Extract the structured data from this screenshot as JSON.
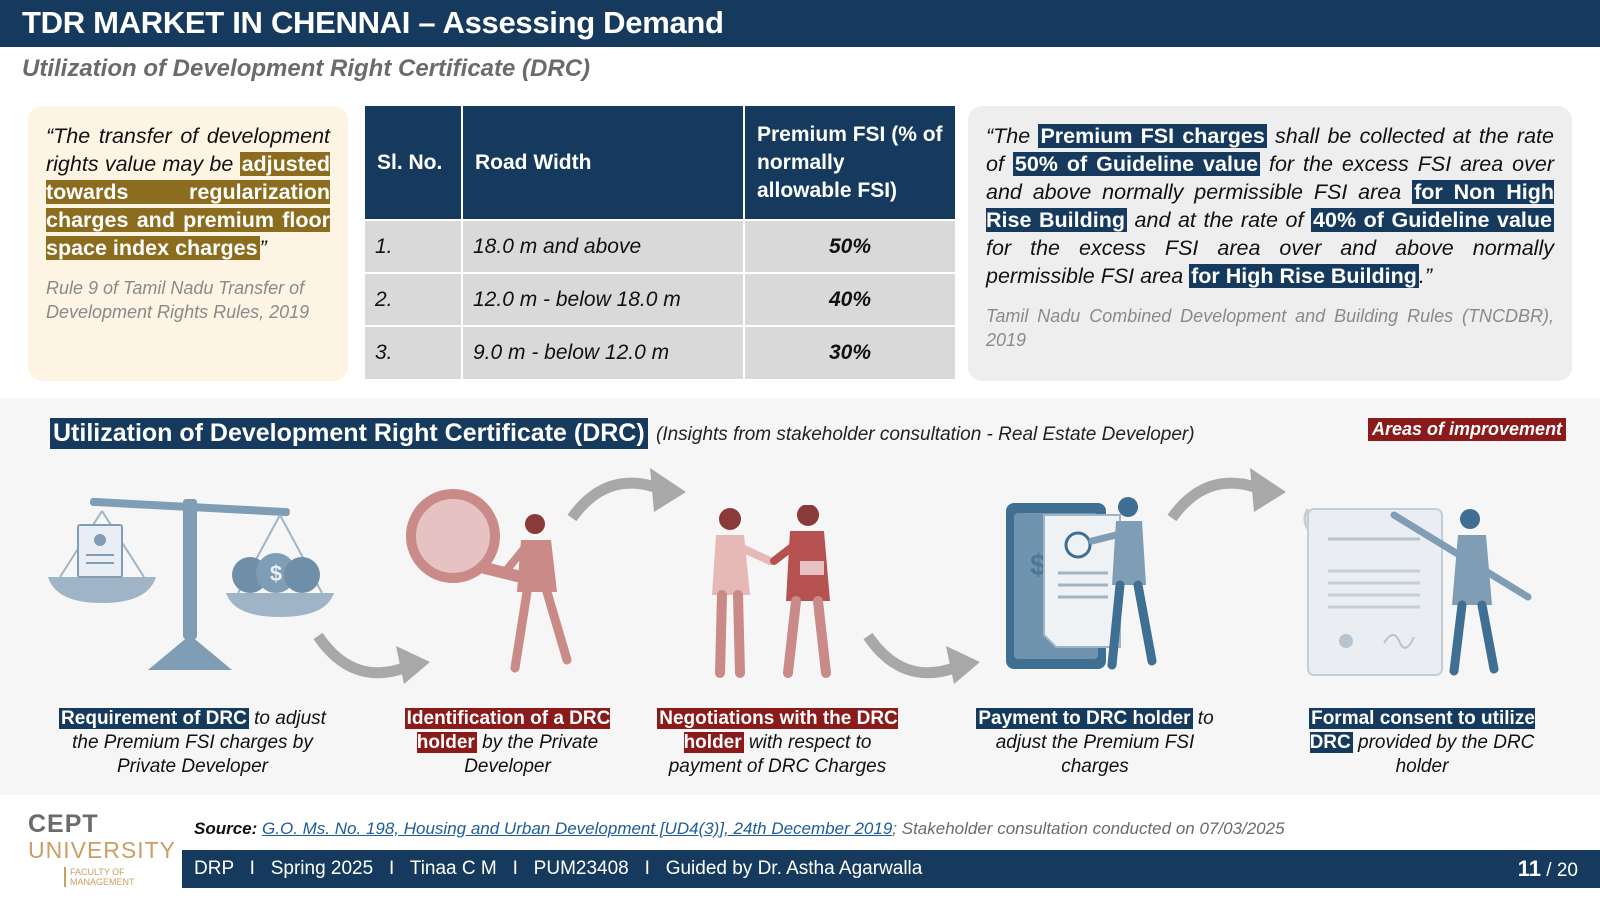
{
  "header": {
    "title": "TDR MARKET IN CHENNAI – Assessing Demand",
    "subtitle": "Utilization of Development Right Certificate (DRC)"
  },
  "left_quote": {
    "text_before": "“The transfer of development rights value may be ",
    "highlight": "adjusted towards regularization charges and premium floor space index charges",
    "text_after": "”",
    "citation": "Rule 9 of Tamil Nadu Transfer of Development Rights Rules, 2019"
  },
  "fsi_table": {
    "headers": [
      "Sl. No.",
      "Road Width",
      "Premium FSI (% of normally allowable FSI)"
    ],
    "rows": [
      [
        "1.",
        "18.0 m and above",
        "50%"
      ],
      [
        "2.",
        "12.0 m - below 18.0 m",
        "40%"
      ],
      [
        "3.",
        "9.0 m - below 12.0 m",
        "30%"
      ]
    ]
  },
  "right_quote": {
    "p1": "“The ",
    "h1": "Premium FSI charges",
    "p2": " shall be collected at the rate of ",
    "h2": "50% of Guideline value",
    "p3": " for the excess FSI area over and above normally permissible FSI area ",
    "h3": "for Non High Rise Building",
    "p4": " and at the rate of ",
    "h4": "40% of Guideline value",
    "p5": " for the excess FSI area over and above normally permissible FSI area ",
    "h5": "for High Rise Building",
    "p6": ".”",
    "citation": "Tamil Nadu Combined Development and Building Rules (TNCDBR), 2019"
  },
  "process": {
    "heading": "Utilization of Development Right Certificate (DRC)",
    "note": "(Insights from stakeholder consultation - Real Estate Developer)",
    "badge": "Areas of improvement",
    "steps": [
      {
        "label": "Requirement of DRC",
        "rest": " to adjust the Premium FSI charges by Private Developer"
      },
      {
        "label": "Identification of a DRC holder",
        "rest": " by the Private Developer"
      },
      {
        "label": "Negotiations with the DRC holder",
        "rest": " with respect to payment of DRC Charges"
      },
      {
        "label": "Payment to DRC holder",
        "rest": " to adjust the Premium FSI charges"
      },
      {
        "label": "Formal consent to utilize DRC",
        "rest": " provided by the DRC holder"
      }
    ],
    "icons": [
      "scale-icon",
      "magnifier-person-icon",
      "handshake-icon",
      "payment-document-icon",
      "signing-document-icon"
    ]
  },
  "logo": {
    "line1": "CEPT",
    "line2": "UNIVERSITY",
    "line3": "FACULTY OF MANAGEMENT"
  },
  "source": {
    "label": "Source:",
    "link": "G.O. Ms. No. 198, Housing and Urban Development [UD4(3)], 24th December 2019",
    "rest": "; Stakeholder consultation conducted on 07/03/2025"
  },
  "footer": {
    "info": "DRP   I   Spring 2025   I   Tinaa C M   I   PUM23408   I   Guided by Dr. Astha Agarwalla",
    "page_current": "11",
    "page_total": " / 20"
  },
  "colors": {
    "navy": "#163a5e",
    "gold": "#8c6d1f",
    "maroon": "#8b1a1a",
    "steel": "#7f9db4",
    "rose": "#c98a88"
  }
}
